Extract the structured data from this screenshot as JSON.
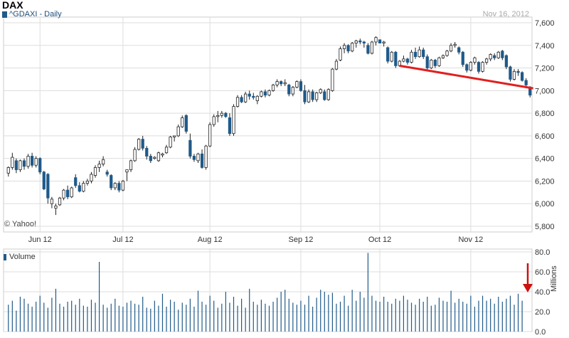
{
  "header": {
    "title": "DAX",
    "symbol_label": "^GDAXI - Daily",
    "date": "Nov 16, 2012",
    "copyright": "© Yahoo!",
    "volume_legend": "Volume",
    "volume_unit": "Millions"
  },
  "colors": {
    "up": "#ffffff",
    "down": "#1f5a8a",
    "trendline": "#e02020",
    "arrow": "#cc1111",
    "grid": "#dddddd"
  },
  "chart_data": [
    {
      "type": "candlestick",
      "title": "DAX",
      "series_name": "^GDAXI - Daily",
      "ylim": [
        5800,
        7600
      ],
      "yticks": [
        5800,
        6000,
        6200,
        6400,
        6600,
        6800,
        7000,
        7200,
        7400,
        7600
      ],
      "yticklabels": [
        "5,800",
        "6,000",
        "6,200",
        "6,400",
        "6,600",
        "6,800",
        "7,000",
        "7,200",
        "7,400",
        "7,600"
      ],
      "xticks": [
        {
          "label": "Jun 12",
          "index": 8
        },
        {
          "label": "Jul 12",
          "index": 29
        },
        {
          "label": "Aug 12",
          "index": 51
        },
        {
          "label": "Sep 12",
          "index": 74
        },
        {
          "label": "Oct 12",
          "index": 94
        },
        {
          "label": "Nov 12",
          "index": 117
        }
      ],
      "candles": [
        [
          6270,
          6330,
          6240,
          6320
        ],
        [
          6320,
          6450,
          6300,
          6410
        ],
        [
          6380,
          6400,
          6270,
          6300
        ],
        [
          6300,
          6390,
          6280,
          6380
        ],
        [
          6380,
          6400,
          6300,
          6330
        ],
        [
          6330,
          6440,
          6310,
          6420
        ],
        [
          6420,
          6450,
          6320,
          6340
        ],
        [
          6340,
          6420,
          6320,
          6400
        ],
        [
          6400,
          6410,
          6260,
          6280
        ],
        [
          6280,
          6290,
          6120,
          6130
        ],
        [
          6260,
          6270,
          6000,
          6050
        ],
        [
          6000,
          6060,
          5960,
          6040
        ],
        [
          5960,
          6000,
          5900,
          5980
        ],
        [
          5990,
          6060,
          5980,
          6050
        ],
        [
          6050,
          6130,
          6030,
          6120
        ],
        [
          6120,
          6160,
          6040,
          6060
        ],
        [
          6060,
          6150,
          6050,
          6140
        ],
        [
          6230,
          6260,
          6140,
          6160
        ],
        [
          6160,
          6190,
          6100,
          6110
        ],
        [
          6110,
          6200,
          6100,
          6180
        ],
        [
          6180,
          6220,
          6160,
          6200
        ],
        [
          6200,
          6280,
          6180,
          6260
        ],
        [
          6250,
          6340,
          6230,
          6320
        ],
        [
          6320,
          6380,
          6280,
          6350
        ],
        [
          6350,
          6420,
          6330,
          6390
        ],
        [
          6280,
          6300,
          6240,
          6260
        ],
        [
          6250,
          6260,
          6120,
          6140
        ],
        [
          6140,
          6190,
          6120,
          6180
        ],
        [
          6180,
          6200,
          6100,
          6120
        ],
        [
          6120,
          6210,
          6110,
          6200
        ],
        [
          6280,
          6290,
          6200,
          6300
        ],
        [
          6300,
          6390,
          6280,
          6380
        ],
        [
          6380,
          6500,
          6370,
          6480
        ],
        [
          6480,
          6580,
          6470,
          6570
        ],
        [
          6570,
          6600,
          6470,
          6490
        ],
        [
          6490,
          6510,
          6390,
          6420
        ],
        [
          6420,
          6440,
          6360,
          6380
        ],
        [
          6400,
          6420,
          6390,
          6410
        ],
        [
          6380,
          6460,
          6370,
          6450
        ],
        [
          6430,
          6450,
          6410,
          6440
        ],
        [
          6450,
          6520,
          6440,
          6500
        ],
        [
          6500,
          6600,
          6490,
          6590
        ],
        [
          6590,
          6600,
          6550,
          6600
        ],
        [
          6600,
          6700,
          6590,
          6680
        ],
        [
          6680,
          6780,
          6670,
          6760
        ],
        [
          6780,
          6790,
          6620,
          6640
        ],
        [
          6560,
          6620,
          6400,
          6420
        ],
        [
          6420,
          6440,
          6370,
          6390
        ],
        [
          6380,
          6450,
          6360,
          6440
        ],
        [
          6440,
          6480,
          6310,
          6320
        ],
        [
          6320,
          6520,
          6300,
          6510
        ],
        [
          6510,
          6720,
          6500,
          6700
        ],
        [
          6700,
          6790,
          6680,
          6770
        ],
        [
          6770,
          6820,
          6720,
          6780
        ],
        [
          6780,
          6820,
          6760,
          6800
        ],
        [
          6800,
          6810,
          6760,
          6770
        ],
        [
          6760,
          6800,
          6600,
          6620
        ],
        [
          6620,
          6880,
          6600,
          6860
        ],
        [
          6860,
          6960,
          6850,
          6940
        ],
        [
          6940,
          6960,
          6890,
          6900
        ],
        [
          6900,
          6990,
          6890,
          6970
        ],
        [
          6970,
          7000,
          6920,
          6950
        ],
        [
          6950,
          6980,
          6920,
          6940
        ],
        [
          6910,
          6960,
          6880,
          6950
        ],
        [
          6950,
          7000,
          6940,
          6990
        ],
        [
          6990,
          7010,
          6940,
          6960
        ],
        [
          6960,
          7010,
          6950,
          7000
        ],
        [
          7000,
          7060,
          6990,
          7050
        ],
        [
          7050,
          7100,
          7030,
          7080
        ],
        [
          7080,
          7090,
          7040,
          7060
        ],
        [
          7060,
          7100,
          7040,
          7070
        ],
        [
          7050,
          7060,
          6950,
          6970
        ],
        [
          6970,
          7040,
          6950,
          7030
        ],
        [
          7030,
          7090,
          7020,
          7080
        ],
        [
          7080,
          7100,
          6990,
          7000
        ],
        [
          7000,
          7050,
          6880,
          6900
        ],
        [
          6900,
          7010,
          6890,
          6990
        ],
        [
          6990,
          7010,
          6900,
          6920
        ],
        [
          6920,
          6990,
          6900,
          6980
        ],
        [
          6980,
          7020,
          6970,
          7010
        ],
        [
          6990,
          7010,
          6910,
          6920
        ],
        [
          6920,
          7020,
          6910,
          7010
        ],
        [
          7000,
          7200,
          6990,
          7190
        ],
        [
          7190,
          7280,
          7180,
          7260
        ],
        [
          7270,
          7390,
          7260,
          7370
        ],
        [
          7370,
          7420,
          7330,
          7400
        ],
        [
          7400,
          7410,
          7330,
          7350
        ],
        [
          7350,
          7430,
          7340,
          7420
        ],
        [
          7420,
          7450,
          7380,
          7440
        ],
        [
          7440,
          7460,
          7410,
          7430
        ],
        [
          7430,
          7440,
          7380,
          7420
        ],
        [
          7400,
          7420,
          7320,
          7330
        ],
        [
          7330,
          7440,
          7320,
          7430
        ],
        [
          7430,
          7480,
          7400,
          7470
        ],
        [
          7450,
          7450,
          7420,
          7420
        ],
        [
          7420,
          7440,
          7390,
          7430
        ],
        [
          7380,
          7390,
          7240,
          7260
        ],
        [
          7260,
          7350,
          7250,
          7340
        ],
        [
          7340,
          7350,
          7200,
          7220
        ],
        [
          7220,
          7270,
          7210,
          7260
        ],
        [
          7260,
          7310,
          7250,
          7280
        ],
        [
          7280,
          7290,
          7230,
          7250
        ],
        [
          7250,
          7360,
          7240,
          7340
        ],
        [
          7340,
          7380,
          7280,
          7300
        ],
        [
          7300,
          7390,
          7290,
          7360
        ],
        [
          7360,
          7380,
          7280,
          7300
        ],
        [
          7300,
          7320,
          7180,
          7200
        ],
        [
          7200,
          7280,
          7190,
          7270
        ],
        [
          7270,
          7280,
          7200,
          7220
        ],
        [
          7220,
          7300,
          7210,
          7290
        ],
        [
          7290,
          7320,
          7280,
          7310
        ],
        [
          7310,
          7360,
          7300,
          7350
        ],
        [
          7350,
          7420,
          7340,
          7400
        ],
        [
          7400,
          7430,
          7380,
          7410
        ],
        [
          7380,
          7390,
          7320,
          7340
        ],
        [
          7340,
          7350,
          7210,
          7230
        ],
        [
          7230,
          7240,
          7160,
          7180
        ],
        [
          7180,
          7260,
          7170,
          7250
        ],
        [
          7250,
          7300,
          7230,
          7290
        ],
        [
          7250,
          7260,
          7150,
          7170
        ],
        [
          7170,
          7260,
          7160,
          7250
        ],
        [
          7250,
          7290,
          7230,
          7280
        ],
        [
          7280,
          7330,
          7260,
          7320
        ],
        [
          7310,
          7330,
          7270,
          7290
        ],
        [
          7290,
          7350,
          7280,
          7340
        ],
        [
          7350,
          7360,
          7270,
          7290
        ],
        [
          7310,
          7320,
          7190,
          7210
        ],
        [
          7210,
          7220,
          7080,
          7100
        ],
        [
          7100,
          7190,
          7090,
          7170
        ],
        [
          7170,
          7190,
          7130,
          7160
        ],
        [
          7160,
          7170,
          7080,
          7090
        ],
        [
          7090,
          7110,
          7020,
          7050
        ],
        [
          7030,
          7040,
          6940,
          6960
        ]
      ],
      "trendline": {
        "from": [
          99,
          7220
        ],
        "to": [
          131,
          7020
        ]
      }
    },
    {
      "type": "bar",
      "title": "Volume",
      "ylabel": "Millions",
      "ylim": [
        0,
        80
      ],
      "yticks": [
        0,
        20,
        40,
        60,
        80
      ],
      "yticklabels": [
        "0.0",
        "20.0",
        "40.0",
        "60.0",
        "80.0"
      ],
      "values": [
        27,
        31,
        21,
        35,
        33,
        28,
        25,
        30,
        36,
        29,
        24,
        34,
        43,
        28,
        25,
        30,
        31,
        27,
        33,
        26,
        25,
        32,
        29,
        70,
        27,
        24,
        28,
        33,
        26,
        25,
        29,
        31,
        28,
        27,
        35,
        24,
        23,
        31,
        26,
        38,
        25,
        32,
        30,
        22,
        29,
        27,
        33,
        25,
        41,
        30,
        27,
        36,
        31,
        24,
        28,
        40,
        29,
        35,
        26,
        33,
        24,
        43,
        30,
        27,
        32,
        28,
        26,
        30,
        34,
        40,
        42,
        33,
        29,
        27,
        31,
        27,
        36,
        25,
        34,
        42,
        40,
        37,
        39,
        28,
        30,
        36,
        26,
        42,
        31,
        40,
        34,
        79,
        36,
        31,
        30,
        35,
        30,
        28,
        33,
        31,
        36,
        32,
        29,
        27,
        33,
        30,
        35,
        26,
        27,
        34,
        31,
        30,
        41,
        29,
        33,
        30,
        28,
        36,
        25,
        31,
        36,
        31,
        33,
        28,
        35,
        30,
        33,
        36,
        27,
        38,
        31
      ]
    }
  ]
}
